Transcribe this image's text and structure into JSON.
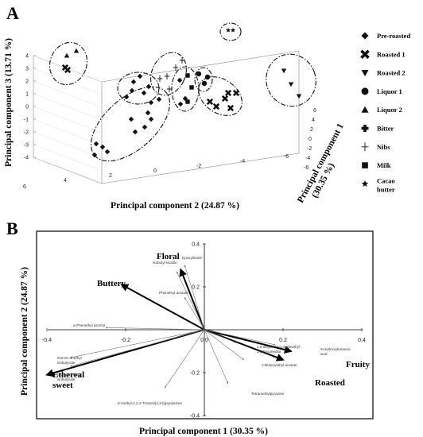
{
  "panel_a": {
    "label": "A",
    "legend": [
      {
        "name": "Pre-roasted",
        "marker": "diamond"
      },
      {
        "name": "Roasted 1",
        "marker": "cross"
      },
      {
        "name": "Roasted 2",
        "marker": "triangle-down"
      },
      {
        "name": "Liquor 1",
        "marker": "circle"
      },
      {
        "name": "Liquor 2",
        "marker": "triangle-up"
      },
      {
        "name": "Bitter",
        "marker": "plus-bold"
      },
      {
        "name": "Nibs",
        "marker": "plus-thin"
      },
      {
        "name": "Milk",
        "marker": "square"
      },
      {
        "name": "Cacao butter",
        "marker": "star"
      }
    ]
  },
  "panel_b": {
    "label": "B"
  },
  "chart_data": [
    {
      "type": "scatter",
      "title": "",
      "xlabel": "Principal component 2 (24.87 %)",
      "ylabel": "Principal component 3 (13.71 %)",
      "zlabel": "Principal component 1 (30.35 %)",
      "x_ticks": [
        "6",
        "4",
        "2",
        "0",
        "-2",
        "-4",
        "-6"
      ],
      "y_ticks": [
        "-4",
        "-3",
        "-2",
        "-1",
        "0",
        "1",
        "2",
        "3",
        "4"
      ],
      "z_ticks": [
        "-6",
        "-4",
        "-2",
        "0",
        "2",
        "4",
        "6"
      ],
      "xlim": [
        6,
        -6
      ],
      "ylim": [
        -4,
        4
      ],
      "zlim": [
        -6,
        6
      ],
      "legend_position": "right",
      "note": "3D PCA score plot; groups outlined with dash-dot ellipses"
    },
    {
      "type": "biplot",
      "title": "",
      "xlabel": "Principal component 1 (30.35 %)",
      "ylabel": "Principal component 2 (24.87 %)",
      "x_ticks": [
        "-0.4",
        "-0.2",
        "0.0",
        "0.2",
        "0.4"
      ],
      "y_ticks": [
        "-0.4",
        "-0.2",
        "0.0",
        "0.2",
        "0.4"
      ],
      "xlim": [
        -0.4,
        0.4
      ],
      "ylim": [
        -0.4,
        0.4
      ],
      "vectors": [
        {
          "name": "Floral",
          "x": -0.06,
          "y": 0.28,
          "bold": true
        },
        {
          "name": "Buttery",
          "x": -0.21,
          "y": 0.21,
          "bold": true
        },
        {
          "name": "Ethereal sweet",
          "x": -0.4,
          "y": -0.21,
          "bold": true
        },
        {
          "name": "Fruity",
          "x": 0.22,
          "y": -0.1,
          "bold": true
        },
        {
          "name": "Roasted",
          "x": 0.2,
          "y": -0.14,
          "bold": true
        },
        {
          "name": "Epoxylinalol",
          "x": -0.05,
          "y": 0.3,
          "bold": false
        },
        {
          "name": "Isobutyl lactate",
          "x": -0.07,
          "y": 0.27,
          "bold": false
        },
        {
          "name": "Phenethyl acetate",
          "x": -0.05,
          "y": 0.15,
          "bold": false
        },
        {
          "name": "α-Phenethyl alcohol",
          "x": -0.25,
          "y": 0.01,
          "bold": false
        },
        {
          "name": "Isomer of Ethyl isobutyrate",
          "x": -0.34,
          "y": -0.13,
          "bold": false
        },
        {
          "name": "Isomer of Ethyl isobutyrate",
          "x": -0.34,
          "y": -0.17,
          "bold": false
        },
        {
          "name": "8-methyl-1,2,4-Triazolo[4,3-b]pyridazine",
          "x": -0.1,
          "y": -0.27,
          "bold": false
        },
        {
          "name": "Tetramethylpyrazine",
          "x": 0.06,
          "y": -0.25,
          "bold": false
        },
        {
          "name": "2-Butenyethyl acetate",
          "x": 0.1,
          "y": -0.14,
          "bold": false
        },
        {
          "name": "3-Hydroxybutanoic acid",
          "x": 0.18,
          "y": -0.07,
          "bold": false
        },
        {
          "name": "2,5-dihydroxy-3,4-dimethyl-2,5-hexanediol",
          "x": 0.08,
          "y": -0.06,
          "bold": false
        }
      ],
      "legend_position": "none"
    }
  ]
}
